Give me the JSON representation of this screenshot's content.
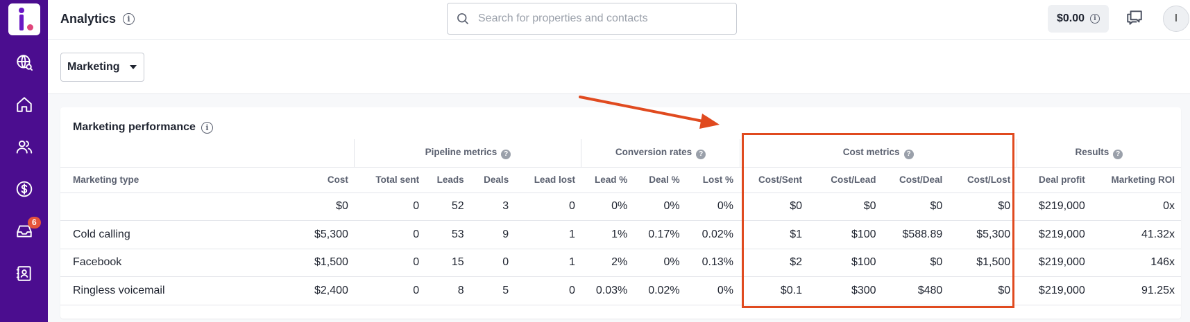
{
  "sidebar": {
    "items": [
      {
        "name": "globe-search",
        "label": ""
      },
      {
        "name": "home",
        "label": ""
      },
      {
        "name": "contacts",
        "label": ""
      },
      {
        "name": "dollar",
        "label": ""
      },
      {
        "name": "inbox",
        "label": "",
        "badge": "6"
      },
      {
        "name": "contact-book",
        "label": ""
      }
    ]
  },
  "header": {
    "title": "Analytics",
    "search_placeholder": "Search for properties and contacts",
    "balance": "$0.00",
    "avatar_initial": "I"
  },
  "filter": {
    "selected": "Marketing"
  },
  "card": {
    "title": "Marketing performance",
    "groups": [
      "Pipeline metrics",
      "Conversion rates",
      "Cost metrics",
      "Results"
    ],
    "columns": [
      "Marketing type",
      "Cost",
      "Total sent",
      "Leads",
      "Deals",
      "Lead lost",
      "Lead %",
      "Deal %",
      "Lost %",
      "Cost/Sent",
      "Cost/Lead",
      "Cost/Deal",
      "Cost/Lost",
      "Deal profit",
      "Marketing ROI"
    ],
    "rows": [
      [
        "",
        "$0",
        "0",
        "52",
        "3",
        "0",
        "0%",
        "0%",
        "0%",
        "$0",
        "$0",
        "$0",
        "$0",
        "$219,000",
        "0x"
      ],
      [
        "Cold calling",
        "$5,300",
        "0",
        "53",
        "9",
        "1",
        "1%",
        "0.17%",
        "0.02%",
        "$1",
        "$100",
        "$588.89",
        "$5,300",
        "$219,000",
        "41.32x"
      ],
      [
        "Facebook",
        "$1,500",
        "0",
        "15",
        "0",
        "1",
        "2%",
        "0%",
        "0.13%",
        "$2",
        "$100",
        "$0",
        "$1,500",
        "$219,000",
        "146x"
      ],
      [
        "Ringless voicemail",
        "$2,400",
        "0",
        "8",
        "5",
        "0",
        "0.03%",
        "0.02%",
        "0%",
        "$0.1",
        "$300",
        "$480",
        "$0",
        "$219,000",
        "91.25x"
      ]
    ]
  },
  "colors": {
    "sidebar": "#4b0d8f",
    "annotation": "#e04a1f",
    "badge": "#e5533b"
  }
}
